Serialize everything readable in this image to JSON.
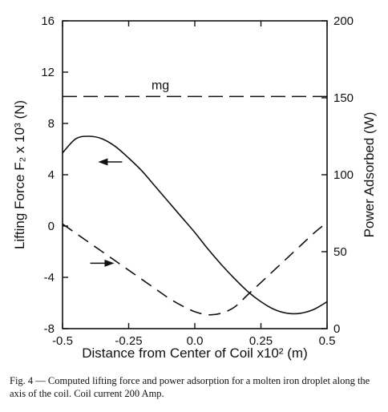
{
  "chart_data": {
    "type": "line",
    "title": "",
    "xlabel": "Distance from Center of Coil  x10² (m)",
    "ylabel_left": "Lifting Force  F₂ x 10³ (N)",
    "ylabel_right": "Power Adsorbed (W)",
    "xlim": [
      -0.5,
      0.5
    ],
    "ylim_left": [
      -8,
      16
    ],
    "ylim_right": [
      0,
      200
    ],
    "x_ticks": [
      -0.5,
      -0.25,
      0.0,
      0.25,
      0.5
    ],
    "x_tick_labels": [
      "-0.5",
      "-0.25",
      "0.0",
      "0.25",
      "0.5"
    ],
    "y_left_ticks": [
      -8,
      -4,
      0,
      4,
      8,
      12,
      16
    ],
    "y_left_tick_labels": [
      "-8",
      "-4",
      "0",
      "4",
      "8",
      "12",
      "16"
    ],
    "y_right_ticks": [
      0,
      50,
      100,
      150,
      200
    ],
    "y_right_tick_labels": [
      "0",
      "50",
      "100",
      "150",
      "200"
    ],
    "grid": false,
    "series": [
      {
        "axis": "left",
        "style": "solid",
        "x": [
          -0.5,
          -0.45,
          -0.4,
          -0.35,
          -0.3,
          -0.25,
          -0.2,
          -0.15,
          -0.1,
          -0.05,
          0.0,
          0.05,
          0.1,
          0.15,
          0.2,
          0.25,
          0.3,
          0.35,
          0.4,
          0.45,
          0.5
        ],
        "y": [
          5.7,
          6.8,
          7.0,
          6.8,
          6.2,
          5.3,
          4.3,
          3.1,
          1.9,
          0.7,
          -0.5,
          -1.8,
          -3.0,
          -4.1,
          -5.1,
          -5.9,
          -6.5,
          -6.8,
          -6.8,
          -6.5,
          -5.9
        ]
      },
      {
        "axis": "right",
        "style": "dashed",
        "x": [
          -0.5,
          -0.45,
          -0.4,
          -0.35,
          -0.3,
          -0.25,
          -0.2,
          -0.15,
          -0.1,
          -0.05,
          0.0,
          0.05,
          0.1,
          0.15,
          0.2,
          0.25,
          0.3,
          0.35,
          0.4,
          0.45,
          0.5
        ],
        "y": [
          68,
          62,
          56,
          50,
          44,
          38,
          32,
          26,
          20,
          15,
          11,
          9,
          10,
          14,
          22,
          30,
          38,
          46,
          54,
          62,
          69
        ]
      }
    ],
    "reference_lines": [
      {
        "axis": "left",
        "y": 10.1,
        "style": "dashed",
        "label": "mg"
      }
    ],
    "annotations": [
      {
        "type": "arrow",
        "direction": "left",
        "at_x": -0.32,
        "at_y_left": 5.0
      },
      {
        "type": "arrow",
        "direction": "right",
        "at_x": -0.35,
        "at_y_left": -2.9
      }
    ]
  },
  "caption": "Fig. 4 — Computed lifting force and power adsorption for a molten iron droplet along the axis of the coil. Coil current 200 Amp."
}
